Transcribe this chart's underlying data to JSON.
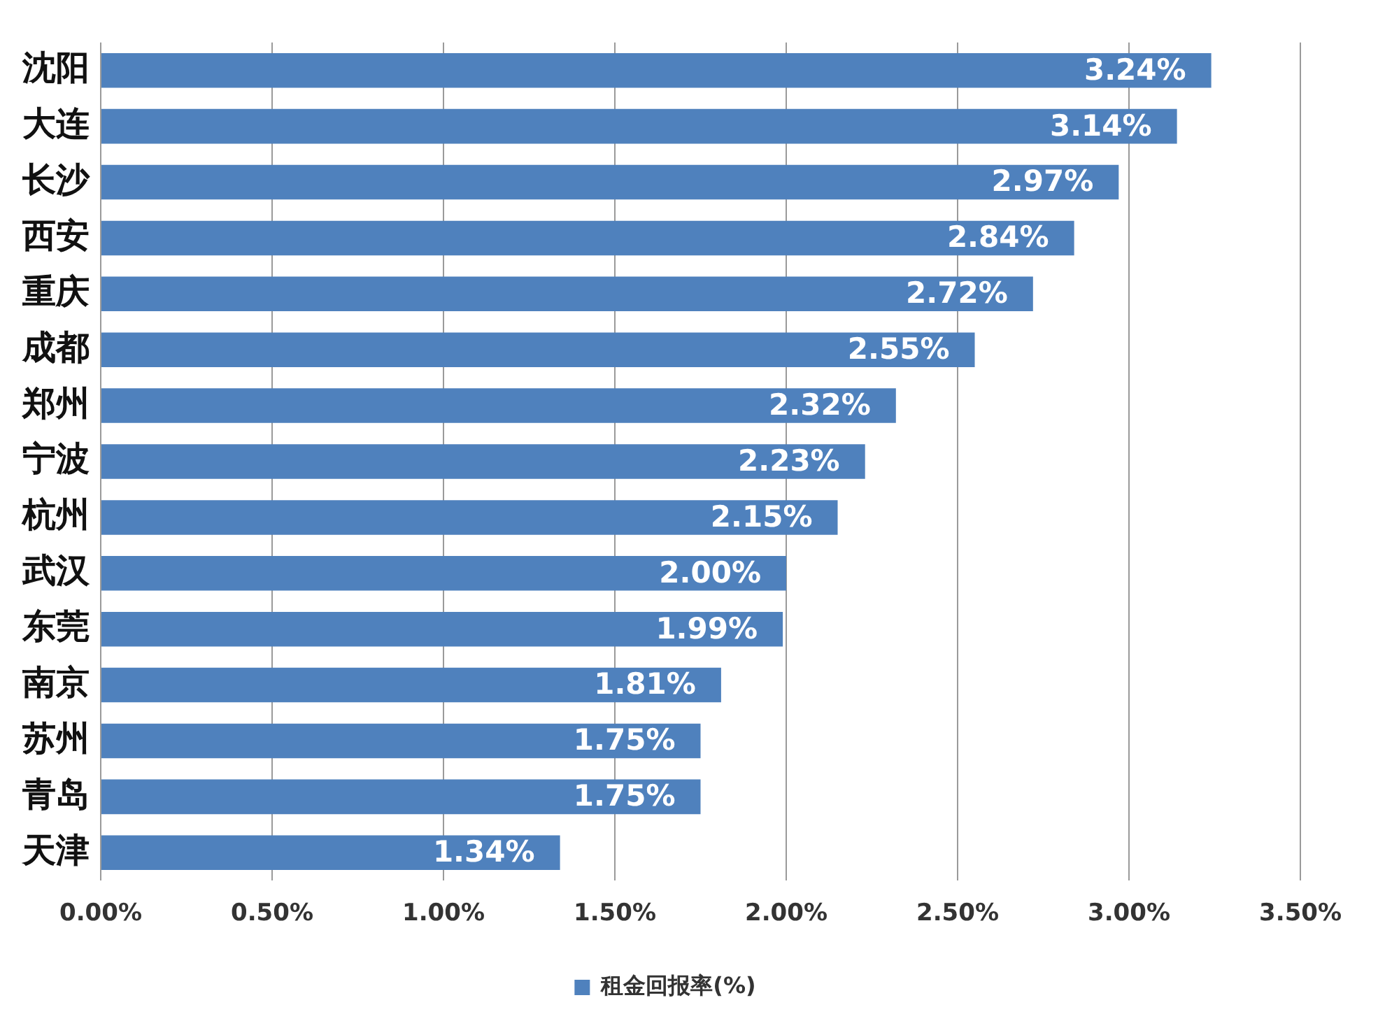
{
  "chart_data": {
    "type": "bar",
    "orientation": "horizontal",
    "categories": [
      "沈阳",
      "大连",
      "长沙",
      "西安",
      "重庆",
      "成都",
      "郑州",
      "宁波",
      "杭州",
      "武汉",
      "东莞",
      "南京",
      "苏州",
      "青岛",
      "天津"
    ],
    "series": [
      {
        "name": "租金回报率(%)",
        "color": "#4f81bd",
        "values": [
          3.24,
          3.14,
          2.97,
          2.84,
          2.72,
          2.55,
          2.32,
          2.23,
          2.15,
          2.0,
          1.99,
          1.81,
          1.75,
          1.75,
          1.34
        ],
        "value_labels": [
          "3.24%",
          "3.14%",
          "2.97%",
          "2.84%",
          "2.72%",
          "2.55%",
          "2.32%",
          "2.23%",
          "2.15%",
          "2.00%",
          "1.99%",
          "1.81%",
          "1.75%",
          "1.75%",
          "1.34%"
        ]
      }
    ],
    "xlim": [
      0,
      3.5
    ],
    "xticks": [
      {
        "value": 0,
        "label": "0.00%"
      },
      {
        "value": 0.5,
        "label": "0.50%"
      },
      {
        "value": 1,
        "label": "1.00%"
      },
      {
        "value": 1.5,
        "label": "1.50%"
      },
      {
        "value": 2,
        "label": "2.00%"
      },
      {
        "value": 2.5,
        "label": "2.50%"
      },
      {
        "value": 3,
        "label": "3.00%"
      },
      {
        "value": 3.5,
        "label": "3.50%"
      }
    ],
    "grid": "x",
    "legend": "bottom"
  }
}
